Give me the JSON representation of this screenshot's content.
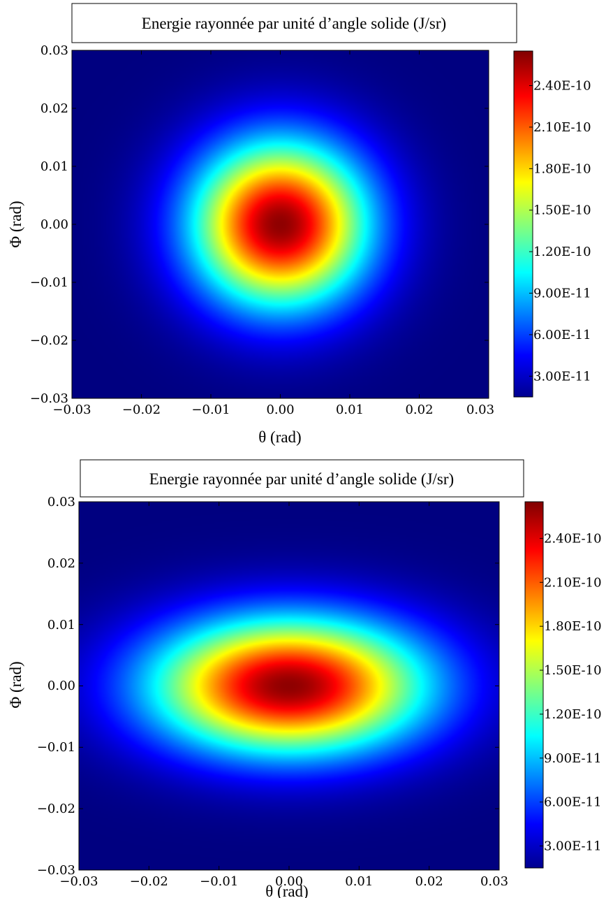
{
  "chart_data": [
    {
      "type": "heatmap",
      "title": "Energie rayonnée par unité d’angle solide (J/sr)",
      "xlabel": "θ (rad)",
      "ylabel": "Φ (rad)",
      "xlim": [
        -0.03,
        0.03
      ],
      "ylim": [
        -0.03,
        0.03
      ],
      "xticks": [
        "−0.03",
        "−0.02",
        "−0.01",
        "0.00",
        "0.01",
        "0.02",
        "0.03"
      ],
      "yticks": [
        "0.03",
        "0.02",
        "0.01",
        "0.00",
        "−0.01",
        "−0.02",
        "−0.03"
      ],
      "colormap": "jet",
      "colorbar": {
        "vmin": 1.5e-11,
        "vmax": 2.65e-10,
        "ticks": [
          3e-11,
          6e-11,
          9e-11,
          1.2e-10,
          1.5e-10,
          1.8e-10,
          2.1e-10,
          2.4e-10
        ],
        "tick_labels": [
          "3.00E-11",
          "6.00E-11",
          "9.00E-11",
          "1.20E-10",
          "1.50E-10",
          "1.80E-10",
          "2.10E-10",
          "2.40E-10"
        ]
      },
      "peak": {
        "theta": 0.0,
        "phi": 0.0,
        "value": 2.65e-10
      },
      "beam_half_width_theta": 0.012,
      "beam_half_width_phi": 0.0135
    },
    {
      "type": "heatmap",
      "title": "Energie rayonnée par unité d’angle solide (J/sr)",
      "xlabel": "θ (rad)",
      "ylabel": "Φ (rad)",
      "xlim": [
        -0.03,
        0.03
      ],
      "ylim": [
        -0.03,
        0.03
      ],
      "xticks": [
        "−0.03",
        "−0.02",
        "−0.01",
        "0.00",
        "0.01",
        "0.02",
        "0.03"
      ],
      "yticks": [
        "0.03",
        "0.02",
        "0.01",
        "0.00",
        "−0.01",
        "−0.02",
        "−0.03"
      ],
      "colormap": "jet",
      "colorbar": {
        "vmin": 1.5e-11,
        "vmax": 2.65e-10,
        "ticks": [
          3e-11,
          6e-11,
          9e-11,
          1.2e-10,
          1.5e-10,
          1.8e-10,
          2.1e-10,
          2.4e-10
        ],
        "tick_labels": [
          "3.00E-11",
          "6.00E-11",
          "9.00E-11",
          "1.20E-10",
          "1.50E-10",
          "1.80E-10",
          "2.10E-10",
          "2.40E-10"
        ]
      },
      "peak": {
        "theta": 0.0,
        "phi": 0.0,
        "value": 2.65e-10
      },
      "beam_half_width_theta": 0.0185,
      "beam_half_width_phi": 0.0105
    }
  ]
}
